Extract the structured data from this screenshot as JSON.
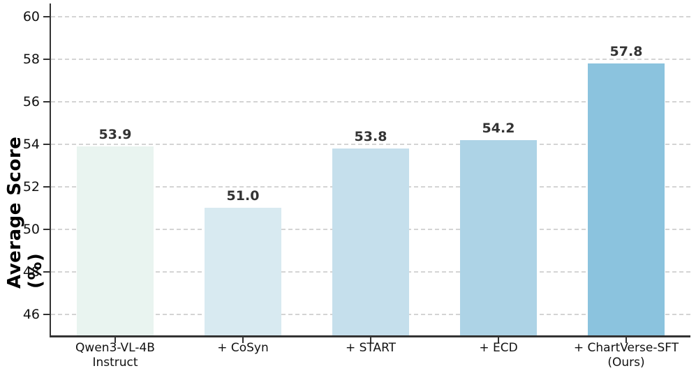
{
  "chart_data": {
    "type": "bar",
    "title": "",
    "xlabel": "",
    "ylabel": "Average Score (%)",
    "categories": [
      "Qwen3-VL-4B\nInstruct",
      "+ CoSyn",
      "+ START",
      "+ ECD",
      "+ ChartVerse-SFT\n(Ours)"
    ],
    "values": [
      53.9,
      51.0,
      53.8,
      54.2,
      57.8
    ],
    "value_labels": [
      "53.9",
      "51.0",
      "53.8",
      "54.2",
      "57.8"
    ],
    "bar_colors": [
      "#e9f4f0",
      "#d8eaf1",
      "#c5dfec",
      "#add3e6",
      "#8bc3de"
    ],
    "ylim": [
      45,
      60.62
    ],
    "yticks": [
      46,
      48,
      50,
      52,
      54,
      56,
      58,
      60
    ],
    "grid": "horizontal-dashed",
    "legend": "none"
  },
  "styles": {
    "spine_color": "#333333",
    "grid_color": "#d4d4d4",
    "tick_label_color": "#111111",
    "value_label_color": "#333333",
    "background": "#ffffff"
  }
}
